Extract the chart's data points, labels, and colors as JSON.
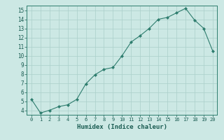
{
  "x": [
    0,
    1,
    2,
    3,
    4,
    5,
    6,
    7,
    8,
    9,
    10,
    11,
    12,
    13,
    14,
    15,
    16,
    17,
    18,
    19,
    20
  ],
  "y": [
    5.2,
    3.7,
    4.0,
    4.4,
    4.6,
    5.2,
    6.9,
    7.9,
    8.5,
    8.7,
    10.0,
    11.5,
    12.2,
    13.0,
    14.0,
    14.2,
    14.7,
    15.2,
    13.9,
    13.0,
    10.5
  ],
  "xlabel": "Humidex (Indice chaleur)",
  "xlim": [
    -0.5,
    20.5
  ],
  "ylim": [
    3.5,
    15.5
  ],
  "yticks": [
    4,
    5,
    6,
    7,
    8,
    9,
    10,
    11,
    12,
    13,
    14,
    15
  ],
  "xticks": [
    0,
    1,
    2,
    3,
    4,
    5,
    6,
    7,
    8,
    9,
    10,
    11,
    12,
    13,
    14,
    15,
    16,
    17,
    18,
    19,
    20
  ],
  "line_color": "#2e7d6e",
  "marker_color": "#2e7d6e",
  "bg_color": "#cce8e4",
  "grid_color": "#aacfca",
  "label_color": "#1a5c52",
  "spine_color": "#2e7d6e"
}
